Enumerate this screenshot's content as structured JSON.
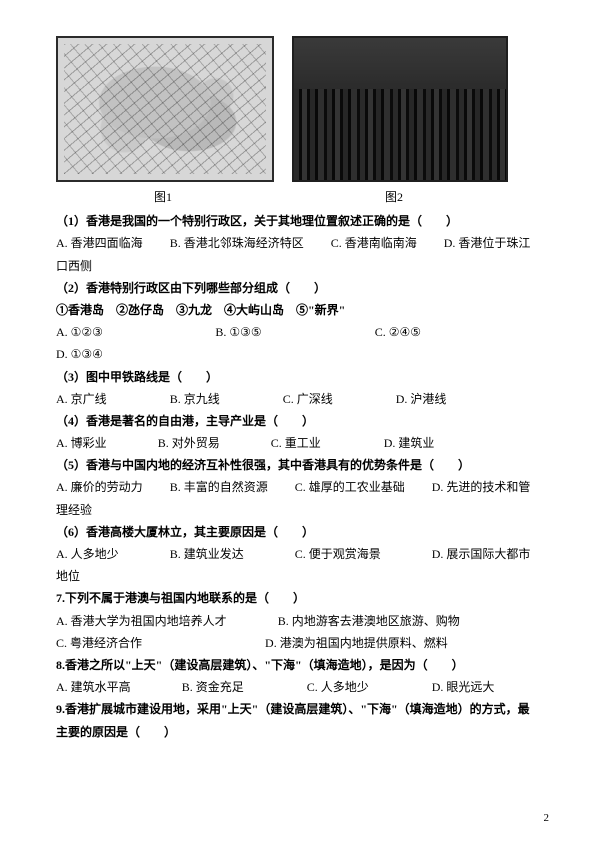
{
  "figures": {
    "map_caption": "图1",
    "photo_caption": "图2"
  },
  "q1": {
    "stem": "（1）香港是我国的一个特别行政区，关于其地理位置叙述正确的是（　　）",
    "a": "A. 香港四面临海",
    "b": "B. 香港北邻珠海经济特区",
    "c": "C. 香港南临南海",
    "d": "D. 香港位于珠江口西侧"
  },
  "q2": {
    "stem": "（2）香港特别行政区由下列哪些部分组成（　　）",
    "items": "①香港岛　②氹仔岛　③九龙　④大屿山岛　⑤\"新界\"",
    "a": "A. ①②③",
    "b": "B. ①③⑤",
    "c": "C. ②④⑤",
    "d": "D. ①③④"
  },
  "q3": {
    "stem": "（3）图中甲铁路线是（　　）",
    "a": "A. 京广线",
    "b": "B. 京九线",
    "c": "C. 广深线",
    "d": "D. 沪港线"
  },
  "q4": {
    "stem": "（4）香港是著名的自由港，主导产业是（　　）",
    "a": "A. 博彩业",
    "b": "B. 对外贸易",
    "c": "C. 重工业",
    "d": "D. 建筑业"
  },
  "q5": {
    "stem": "（5）香港与中国内地的经济互补性很强，其中香港具有的优势条件是（　　）",
    "a": "A. 廉价的劳动力",
    "b": "B. 丰富的自然资源",
    "c": "C. 雄厚的工农业基础",
    "d": "D. 先进的技术和管理经验"
  },
  "q6": {
    "stem": "（6）香港高楼大厦林立，其主要原因是（　　）",
    "a": "A. 人多地少",
    "b": "B. 建筑业发达",
    "c": "C. 便于观赏海景",
    "d": "D. 展示国际大都市地位"
  },
  "q7": {
    "stem": "7.下列不属于港澳与祖国内地联系的是（　　）",
    "a": "A. 香港大学为祖国内地培养人才",
    "b": "B. 内地游客去港澳地区旅游、购物",
    "c": "C. 粤港经济合作",
    "d": "D. 港澳为祖国内地提供原料、燃料"
  },
  "q8": {
    "stem": "8.香港之所以\"上天\"（建设高层建筑）、\"下海\"（填海造地），是因为（　　）",
    "a": "A. 建筑水平高",
    "b": "B. 资金充足",
    "c": "C. 人多地少",
    "d": "D. 眼光远大"
  },
  "q9": {
    "stem": "9.香港扩展城市建设用地，采用\"上天\"（建设高层建筑）、\"下海\"（填海造地）的方式，最主要的原因是（　　）"
  },
  "page_number": "2"
}
